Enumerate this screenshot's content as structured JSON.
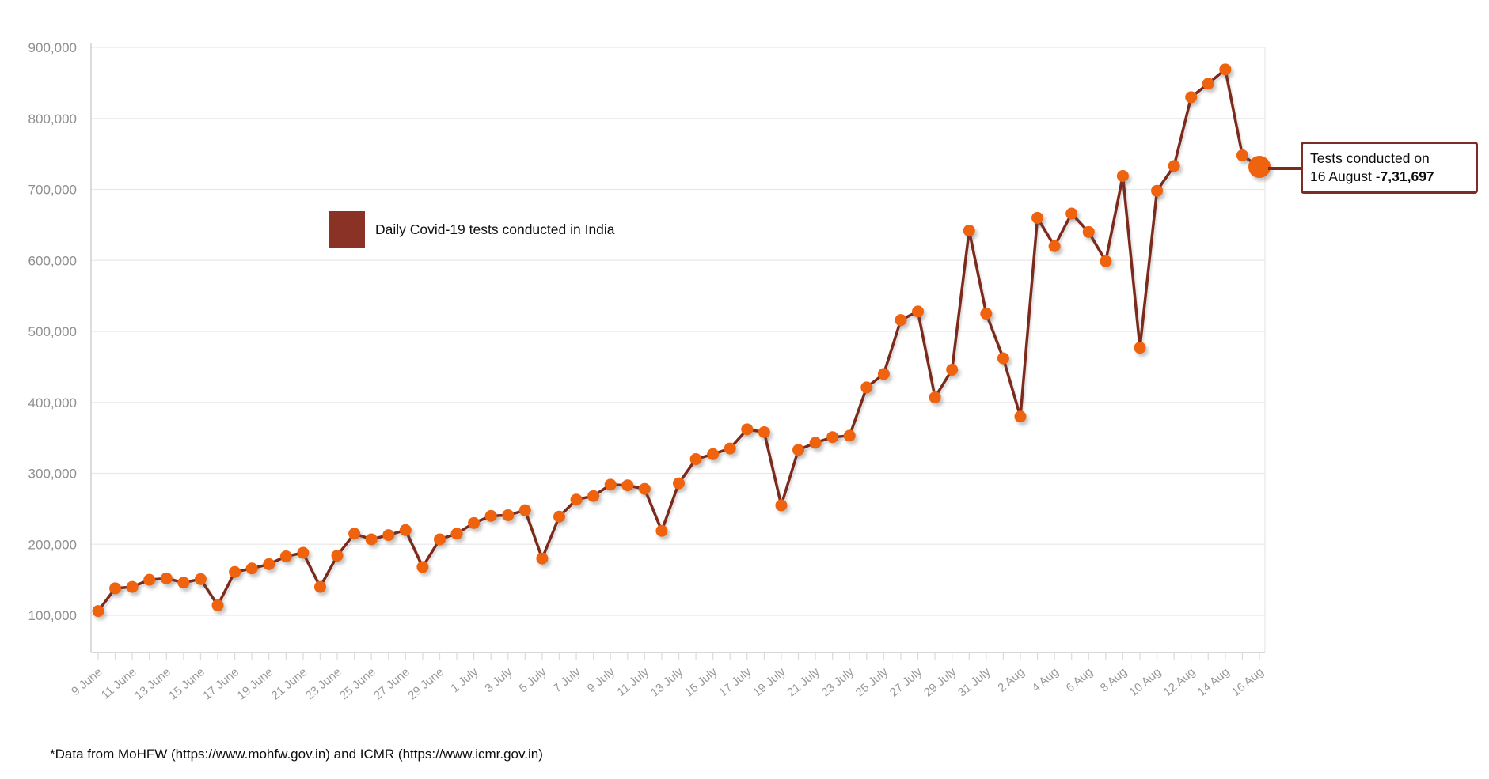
{
  "legend": {
    "label": "Daily Covid-19 tests conducted in India"
  },
  "footer": {
    "text": "*Data from MoHFW (https://www.mohfw.gov.in) and ICMR (https://www.icmr.gov.in)"
  },
  "annotation": {
    "line1": "Tests conducted on",
    "line2_prefix": "16 August -",
    "line2_value": "7,31,697"
  },
  "colors": {
    "line": "#7b2a1c",
    "marker": "#ef630e",
    "legend_square": "#8b3226",
    "annotation_border": "#7b2d26",
    "grid": "#e9e9e9",
    "axis": "#cccccc",
    "tick": "#dddddd",
    "x_label": "#989898",
    "y_label": "#8f8f8f"
  },
  "y_axis": {
    "tick_labels": [
      "100,000",
      "200,000",
      "300,000",
      "400,000",
      "500,000",
      "600,000",
      "700,000",
      "800,000",
      "900,000"
    ],
    "tick_values": [
      100000,
      200000,
      300000,
      400000,
      500000,
      600000,
      700000,
      800000,
      900000
    ]
  },
  "chart_data": {
    "type": "line",
    "title": "Daily Covid-19 tests conducted in India",
    "xlabel": "",
    "ylabel": "",
    "ylim": [
      100000,
      900000
    ],
    "grid": "horizontal",
    "legend_position": "top-left-inside",
    "x_tick_step": 2,
    "highlight_last_point": true,
    "last_point_label": "Tests conducted on 16 August - 7,31,697",
    "x": [
      "9 June",
      "10 June",
      "11 June",
      "12 June",
      "13 June",
      "14 June",
      "15 June",
      "16 June",
      "17 June",
      "18 June",
      "19 June",
      "20 June",
      "21 June",
      "22 June",
      "23 June",
      "24 June",
      "25 June",
      "26 June",
      "27 June",
      "28 June",
      "29 June",
      "30 June",
      "1 July",
      "2 July",
      "3 July",
      "4 July",
      "5 July",
      "6 July",
      "7 July",
      "8 July",
      "9 July",
      "10 July",
      "11 July",
      "12 July",
      "13 July",
      "14 July",
      "15 July",
      "16 July",
      "17 July",
      "18 July",
      "19 July",
      "20 July",
      "21 July",
      "22 July",
      "23 July",
      "24 July",
      "25 July",
      "26 July",
      "27 July",
      "28 July",
      "29 July",
      "30 July",
      "31 July",
      "1 Aug",
      "2 Aug",
      "3 Aug",
      "4 Aug",
      "5 Aug",
      "6 Aug",
      "7 Aug",
      "8 Aug",
      "9 Aug",
      "10 Aug",
      "11 Aug",
      "12 Aug",
      "13 Aug",
      "14 Aug",
      "15 Aug",
      "16 Aug"
    ],
    "values": [
      106000,
      138000,
      140000,
      150000,
      152000,
      146000,
      151000,
      114000,
      161000,
      166000,
      172000,
      183000,
      188000,
      140000,
      184000,
      215000,
      207000,
      213000,
      220000,
      168000,
      207000,
      215000,
      230000,
      240000,
      241000,
      248000,
      180000,
      239000,
      263000,
      268000,
      284000,
      283000,
      278000,
      219000,
      286000,
      320000,
      327000,
      335000,
      362000,
      358000,
      255000,
      333000,
      343000,
      351000,
      353000,
      421000,
      440000,
      516000,
      528000,
      407000,
      446000,
      642000,
      525000,
      462000,
      380000,
      660000,
      620000,
      666000,
      640000,
      599000,
      719000,
      477000,
      698000,
      733000,
      830000,
      849000,
      869000,
      748000,
      731697
    ]
  }
}
